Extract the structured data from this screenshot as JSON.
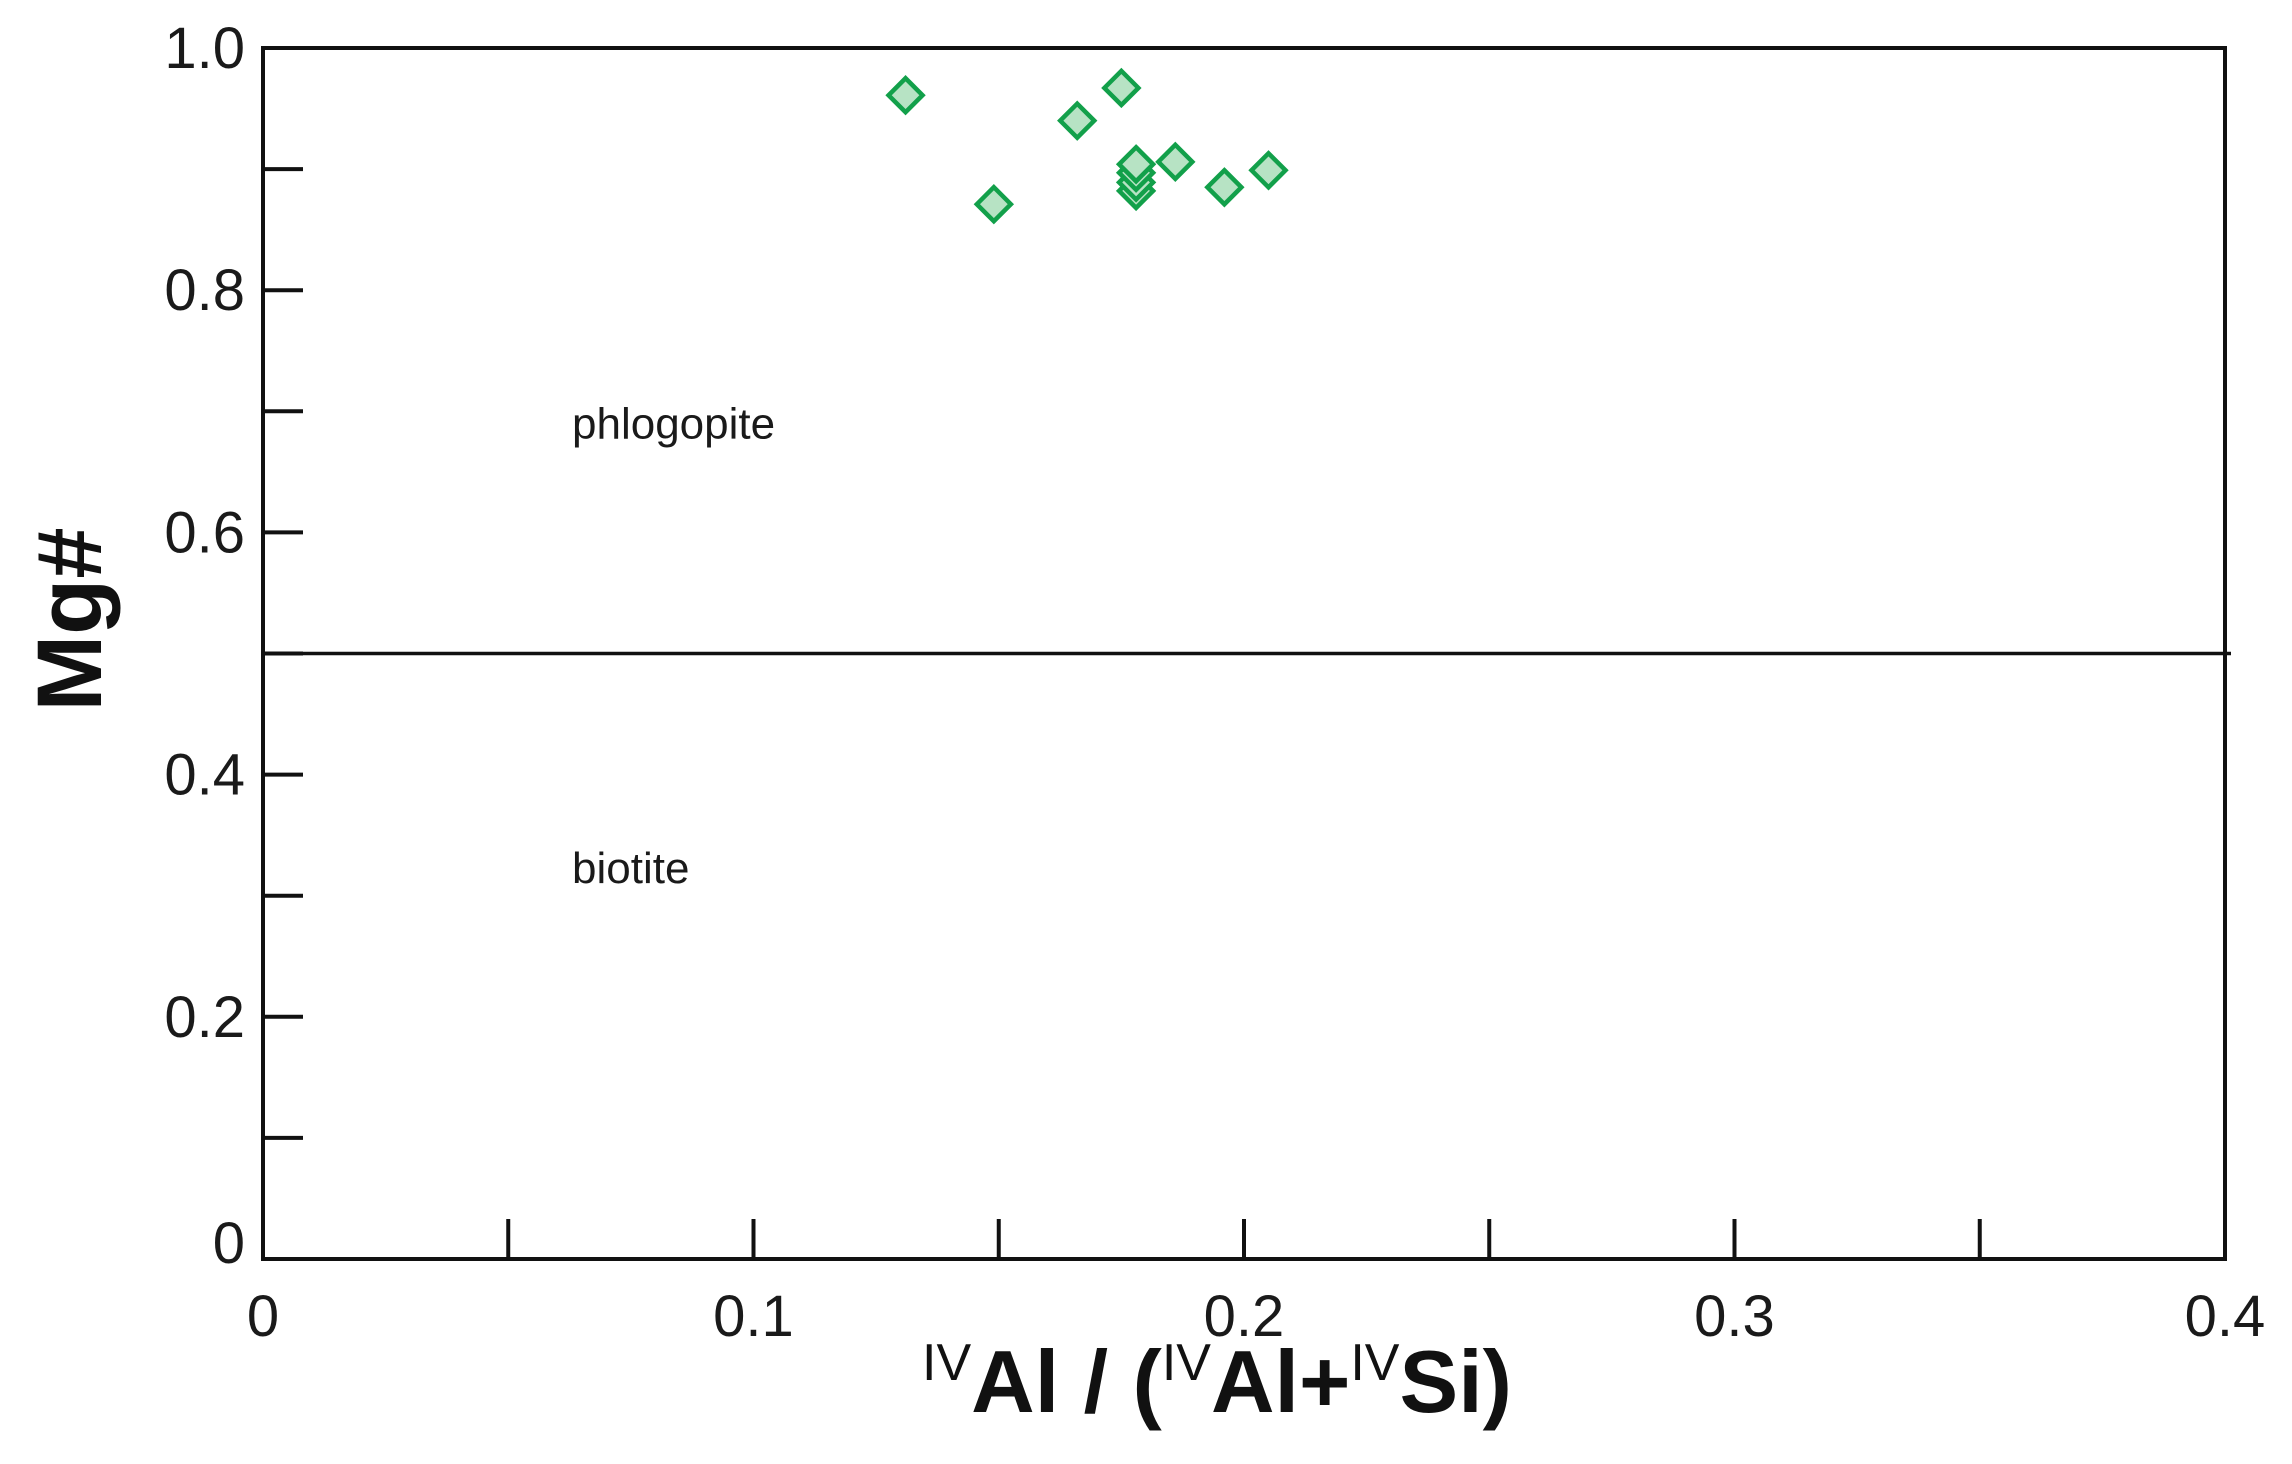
{
  "chart_data": {
    "type": "scatter",
    "xlabel": {
      "parts": [
        {
          "text": "IV",
          "sup": true
        },
        {
          "text": "Al / (",
          "sup": false
        },
        {
          "text": "IV",
          "sup": true
        },
        {
          "text": "Al+",
          "sup": false
        },
        {
          "text": "IV",
          "sup": true
        },
        {
          "text": "Si)",
          "sup": false
        }
      ]
    },
    "ylabel": "Mg#",
    "xlim": [
      0,
      0.4
    ],
    "ylim": [
      0,
      1.0
    ],
    "x_ticks_labeled": [
      {
        "value": 0,
        "label": "0"
      },
      {
        "value": 0.1,
        "label": "0.1"
      },
      {
        "value": 0.2,
        "label": "0.2"
      },
      {
        "value": 0.3,
        "label": "0.3"
      },
      {
        "value": 0.4,
        "label": "0.4"
      }
    ],
    "x_ticks_minor": [
      0.05,
      0.15,
      0.25,
      0.35
    ],
    "y_ticks_labeled": [
      {
        "value": 0,
        "label": "0"
      },
      {
        "value": 0.2,
        "label": "0.2"
      },
      {
        "value": 0.4,
        "label": "0.4"
      },
      {
        "value": 0.6,
        "label": "0.6"
      },
      {
        "value": 0.8,
        "label": "0.8"
      },
      {
        "value": 1.0,
        "label": "1.0"
      }
    ],
    "y_ticks_minor": [
      0.1,
      0.3,
      0.5,
      0.7,
      0.9
    ],
    "boundary_line": {
      "y": 0.5
    },
    "field_labels": [
      {
        "text": "phlogopite",
        "x": 0.063,
        "y": 0.69
      },
      {
        "text": "biotite",
        "x": 0.063,
        "y": 0.323
      }
    ],
    "points": [
      {
        "x": 0.131,
        "y": 0.961
      },
      {
        "x": 0.149,
        "y": 0.871
      },
      {
        "x": 0.166,
        "y": 0.94
      },
      {
        "x": 0.175,
        "y": 0.967
      },
      {
        "x": 0.178,
        "y": 0.882
      },
      {
        "x": 0.178,
        "y": 0.889
      },
      {
        "x": 0.178,
        "y": 0.897
      },
      {
        "x": 0.178,
        "y": 0.904
      },
      {
        "x": 0.186,
        "y": 0.906
      },
      {
        "x": 0.196,
        "y": 0.885
      },
      {
        "x": 0.205,
        "y": 0.899
      }
    ],
    "marker": {
      "shape": "diamond",
      "stroke": "#12a04a",
      "fill": "#b7e3c4"
    },
    "grid": false,
    "legend": "none"
  }
}
